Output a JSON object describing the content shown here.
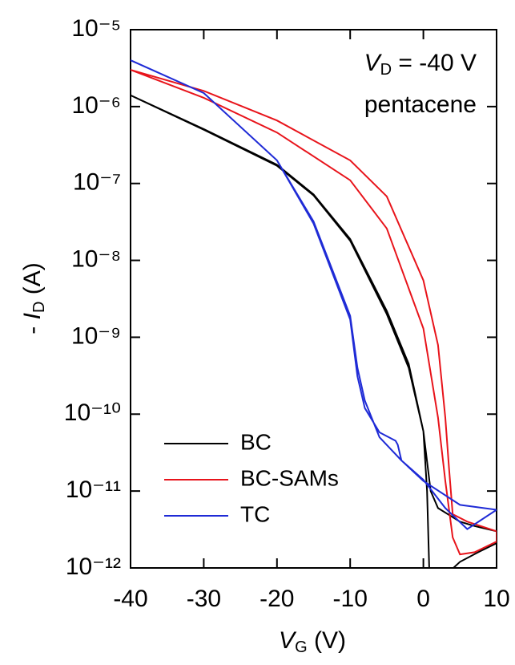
{
  "chart_data": {
    "type": "line",
    "log_y": true,
    "xlabel": [
      "V",
      "G",
      " (V)"
    ],
    "ylabel": [
      "- ",
      "I",
      "D",
      " (A)"
    ],
    "annotations": [
      [
        "V",
        "D",
        " = -40 V"
      ],
      "pentacene"
    ],
    "xlim": [
      -40,
      10
    ],
    "xticks": [
      -40,
      -30,
      -20,
      -10,
      0,
      10
    ],
    "ylim": [
      1e-12,
      1e-05
    ],
    "yticks": [
      {
        "value": 1e-12,
        "label": "10⁻¹²"
      },
      {
        "value": 1e-11,
        "label": "10⁻¹¹"
      },
      {
        "value": 1e-10,
        "label": "10⁻¹⁰"
      },
      {
        "value": 1e-09,
        "label": "10⁻⁹"
      },
      {
        "value": 1e-08,
        "label": "10⁻⁸"
      },
      {
        "value": 1e-07,
        "label": "10⁻⁷"
      },
      {
        "value": 1e-06,
        "label": "10⁻⁶"
      },
      {
        "value": 1e-05,
        "label": "10⁻⁵"
      }
    ],
    "legend": "lower left",
    "series": [
      {
        "name": "BC",
        "color": "#000000",
        "x": [
          -40,
          -30,
          -20,
          -15,
          -10,
          -5,
          -2,
          0,
          0.5,
          0.8,
          1,
          3,
          5,
          7.5,
          10,
          10,
          7,
          5,
          2,
          1,
          0,
          -2,
          -5,
          -10,
          -15,
          -20,
          -30,
          -40
        ],
        "values": [
          1.4e-06,
          5e-07,
          1.7e-07,
          7e-08,
          1.8e-08,
          2e-09,
          4e-10,
          6e-11,
          1e-11,
          1e-12,
          5e-13,
          8e-13,
          1.2e-12,
          1.6e-12,
          2.1e-12,
          3e-12,
          3.5e-12,
          4e-12,
          6e-12,
          1e-11,
          6e-11,
          4.5e-10,
          2.2e-09,
          1.9e-08,
          7.2e-08,
          1.75e-07,
          5.1e-07,
          1.4e-06
        ]
      },
      {
        "name": "BC-SAMs",
        "color": "#e8141b",
        "x": [
          -40,
          -30,
          -20,
          -10,
          -5,
          0,
          2,
          3,
          3.5,
          4,
          6,
          10,
          10,
          7,
          5,
          4,
          3,
          2,
          0,
          -5,
          -10,
          -20,
          -30,
          -40
        ],
        "values": [
          3e-06,
          1.6e-06,
          6.6e-07,
          2e-07,
          6.8e-08,
          5.5e-09,
          7.9e-10,
          9e-11,
          2e-11,
          5e-12,
          4e-12,
          3e-12,
          2.2e-12,
          1.6e-12,
          1.5e-12,
          2.5e-12,
          1.35e-11,
          9e-11,
          1.3e-09,
          2.6e-08,
          1.1e-07,
          4.6e-07,
          1.3e-06,
          3e-06
        ]
      },
      {
        "name": "TC",
        "color": "#1f2bd6",
        "x": [
          -40,
          -30,
          -20,
          -15,
          -10,
          -9,
          -8,
          -6,
          -3.8,
          -3.5,
          -3,
          0,
          5,
          10,
          10,
          6,
          3,
          0,
          -3,
          -6,
          -8,
          -9,
          -10,
          -15,
          -20,
          -30,
          -40
        ],
        "values": [
          4e-06,
          1.5e-06,
          2e-07,
          3e-08,
          1.7e-09,
          3.1e-10,
          1.2e-10,
          5.8e-11,
          4.5e-11,
          4e-11,
          2.5e-11,
          1.35e-11,
          6.6e-12,
          5.7e-12,
          5.7e-12,
          3.2e-12,
          6e-12,
          1.4e-11,
          2.5e-11,
          5e-11,
          1.5e-10,
          4e-10,
          1.9e-09,
          3.2e-08,
          2e-07,
          1.5e-06,
          4e-06
        ]
      }
    ]
  }
}
